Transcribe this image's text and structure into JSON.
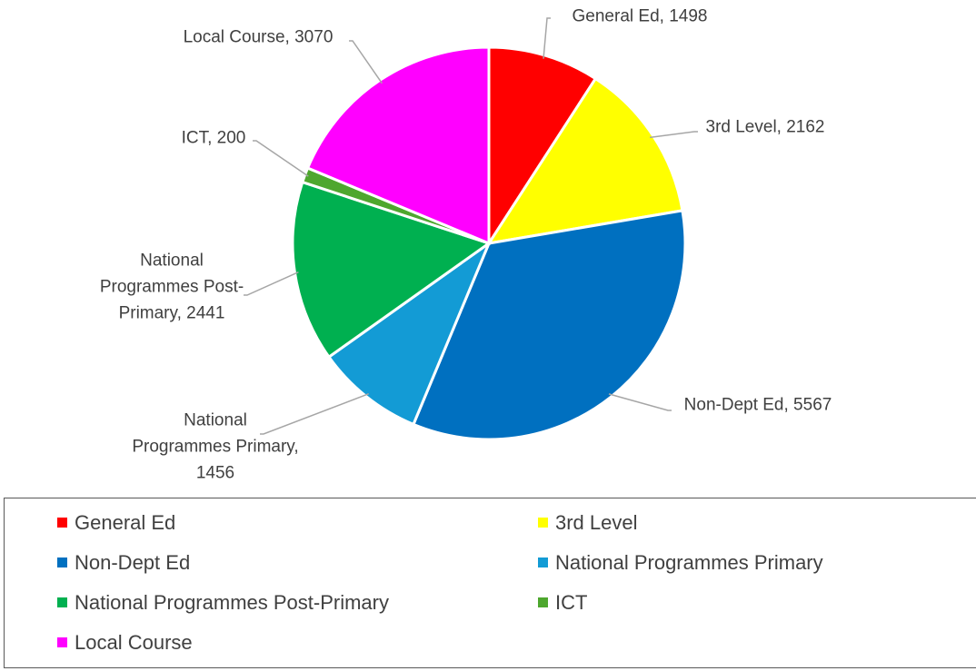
{
  "chart_data": {
    "type": "pie",
    "categories": [
      "General Ed",
      "3rd Level",
      "Non-Dept Ed",
      "National Programmes Primary",
      "National Programmes Post-Primary",
      "ICT",
      "Local Course"
    ],
    "values": [
      1498,
      2162,
      5567,
      1456,
      2441,
      200,
      3070
    ],
    "value_labels": [
      "General Ed, 1498",
      "3rd Level, 2162",
      "Non-Dept Ed, 5567",
      "National\nProgrammes Primary,\n1456",
      "National\nProgrammes Post-\nPrimary, 2441",
      "ICT, 200",
      "Local Course, 3070"
    ],
    "colors": [
      "#ff0000",
      "#ffff00",
      "#0070c0",
      "#139bd5",
      "#00b050",
      "#4ea72e",
      "#ff00ff"
    ],
    "legend": "bottom"
  }
}
